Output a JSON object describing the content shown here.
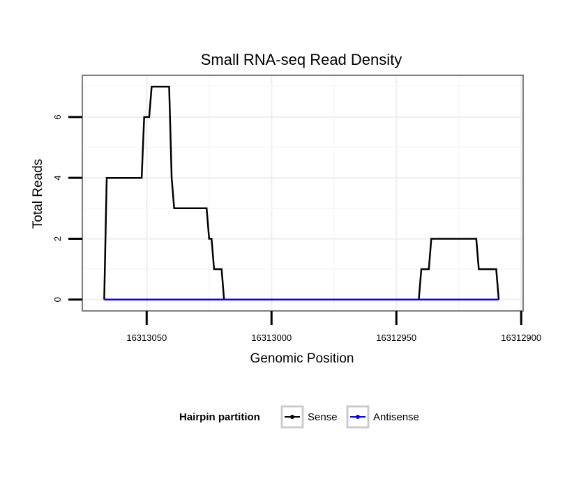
{
  "chart_data": {
    "type": "line",
    "title": "Small RNA-seq Read Density",
    "xlabel": "Genomic Position",
    "ylabel": "Total Reads",
    "xlim": [
      16313075.5,
      16312899.5
    ],
    "ylim": [
      -0.35,
      7.35
    ],
    "x_ticks": [
      16313050,
      16313000,
      16312950,
      16312900
    ],
    "x_tick_labels": [
      "16313050",
      "16313000",
      "16312950",
      "16312900"
    ],
    "y_ticks": [
      0,
      2,
      4,
      6
    ],
    "y_tick_labels": [
      "0",
      "2",
      "4",
      "6"
    ],
    "grid": true,
    "legend": {
      "title": "Hairpin partition",
      "position": "bottom",
      "entries": [
        "Sense",
        "Antisense"
      ]
    },
    "series": [
      {
        "name": "Sense",
        "color": "#000000",
        "points": [
          [
            16313067,
            0
          ],
          [
            16313066,
            4
          ],
          [
            16313052,
            4
          ],
          [
            16313051,
            6
          ],
          [
            16313049,
            6
          ],
          [
            16313048,
            7
          ],
          [
            16313041,
            7
          ],
          [
            16313040,
            4
          ],
          [
            16313039,
            3
          ],
          [
            16313026,
            3
          ],
          [
            16313025,
            2
          ],
          [
            16313024,
            2
          ],
          [
            16313023,
            1
          ],
          [
            16313020,
            1
          ],
          [
            16313019,
            0
          ],
          [
            16312941,
            0
          ],
          [
            16312940,
            1
          ],
          [
            16312937,
            1
          ],
          [
            16312936,
            2
          ],
          [
            16312918,
            2
          ],
          [
            16312917,
            1
          ],
          [
            16312910,
            1
          ],
          [
            16312909,
            0
          ]
        ]
      },
      {
        "name": "Antisense",
        "color": "#0000ff",
        "points": [
          [
            16313067,
            0
          ],
          [
            16312909,
            0
          ]
        ]
      }
    ]
  }
}
